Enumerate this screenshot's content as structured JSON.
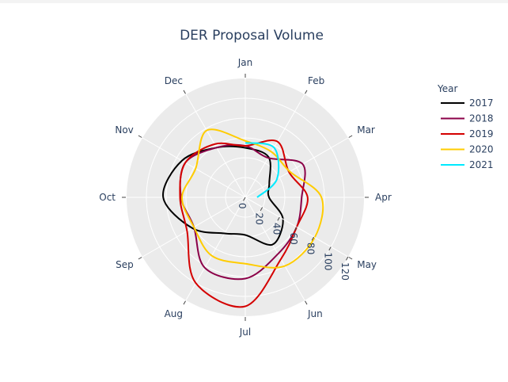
{
  "chart_data": {
    "type": "line",
    "subtype": "polar",
    "title": "DER Proposal Volume",
    "angular_axis": {
      "direction": "clockwise",
      "rotation_deg": 90,
      "categories": [
        "Jan",
        "Feb",
        "Mar",
        "Apr",
        "May",
        "Jun",
        "Jul",
        "Aug",
        "Sep",
        "Oct",
        "Nov",
        "Dec"
      ]
    },
    "radial_axis": {
      "range": [
        0,
        120
      ],
      "ticks": [
        0,
        20,
        40,
        60,
        80,
        100,
        120
      ],
      "tick_labels": [
        "0",
        "20",
        "40",
        "60",
        "80",
        "100",
        "120"
      ]
    },
    "legend": {
      "title": "Year",
      "position": "top-right"
    },
    "series": [
      {
        "name": "2017",
        "color": "#000000",
        "values": [
          50,
          47,
          28,
          24,
          44,
          55,
          38,
          42,
          62,
          83,
          74,
          58
        ]
      },
      {
        "name": "2018",
        "color": "#8b0048",
        "values": [
          52,
          46,
          67,
          57,
          60,
          66,
          82,
          82,
          60,
          65,
          70,
          58
        ]
      },
      {
        "name": "2019",
        "color": "#d40000",
        "values": [
          52,
          65,
          51,
          63,
          60,
          72,
          110,
          100,
          68,
          66,
          70,
          62
        ]
      },
      {
        "name": "2020",
        "color": "#ffcc00",
        "values": [
          57,
          53,
          52,
          77,
          81,
          80,
          67,
          68,
          60,
          64,
          58,
          78
        ]
      },
      {
        "name": "2021",
        "color": "#00eaff",
        "values": [
          55,
          58,
          37,
          12
        ]
      }
    ]
  }
}
